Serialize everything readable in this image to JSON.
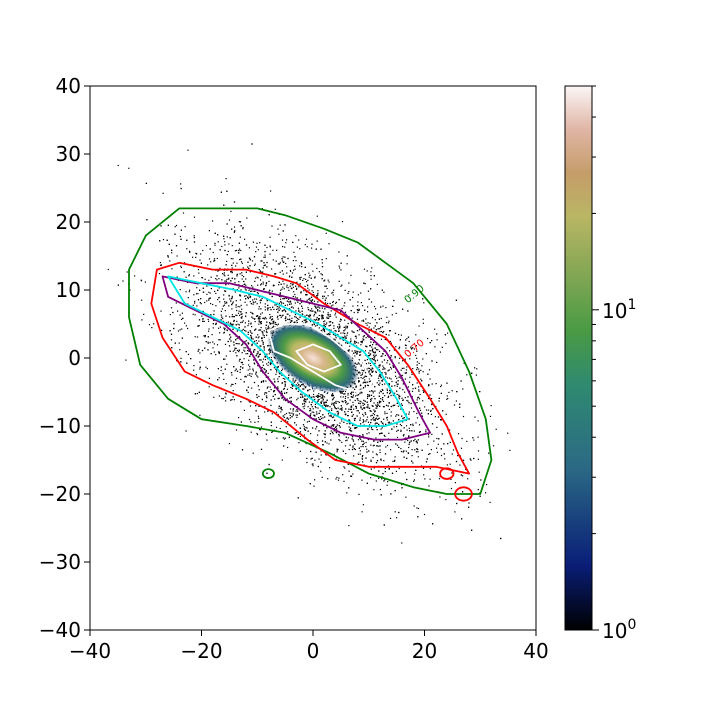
{
  "chart_data": {
    "type": "heatmap",
    "subtype": "2D histogram with density contours",
    "title": "",
    "xlabel": "",
    "ylabel": "",
    "xlim": [
      -40,
      40
    ],
    "ylim": [
      -40,
      40
    ],
    "x_ticks": [
      -40,
      -20,
      0,
      20,
      40
    ],
    "x_tick_labels": [
      "−40",
      "−20",
      "0",
      "20",
      "40"
    ],
    "y_ticks": [
      40,
      30,
      20,
      10,
      0,
      -10,
      -20,
      -30,
      -40
    ],
    "y_tick_labels": [
      "40",
      "30",
      "20",
      "10",
      "0",
      "−10",
      "−20",
      "−30",
      "−40"
    ],
    "grid": false,
    "colormap": "gist_earth",
    "colorbar": {
      "scale": "log",
      "range": [
        1,
        50
      ],
      "tick_labels": [
        "10^0",
        "10^1"
      ],
      "tick_values": [
        1,
        10
      ]
    },
    "distribution": {
      "center": [
        0,
        0
      ],
      "position_angle_deg": -30,
      "extent_semi_major": 40,
      "extent_semi_minor": 17
    },
    "contours": [
      {
        "color": "#008000",
        "label": "0.90",
        "label_at": [
          17,
          8
        ],
        "polygon": [
          [
            -33,
            13
          ],
          [
            -30,
            18
          ],
          [
            -24,
            22
          ],
          [
            -18,
            22
          ],
          [
            -10,
            22
          ],
          [
            -5,
            21
          ],
          [
            2,
            19
          ],
          [
            8,
            17
          ],
          [
            13,
            14
          ],
          [
            18,
            11
          ],
          [
            24,
            5
          ],
          [
            28,
            -2
          ],
          [
            31,
            -9
          ],
          [
            32,
            -15
          ],
          [
            30,
            -20
          ],
          [
            24,
            -20
          ],
          [
            18,
            -19
          ],
          [
            10,
            -17
          ],
          [
            3,
            -14
          ],
          [
            -5,
            -11
          ],
          [
            -12,
            -10
          ],
          [
            -20,
            -9
          ],
          [
            -26,
            -6
          ],
          [
            -31,
            -1
          ],
          [
            -33,
            6
          ]
        ]
      },
      {
        "color": "#ff0000",
        "label": "0.70",
        "label_at": [
          17,
          0
        ],
        "polygon": [
          [
            -28,
            13
          ],
          [
            -24,
            14
          ],
          [
            -18,
            13
          ],
          [
            -12,
            13
          ],
          [
            -7,
            12
          ],
          [
            -3,
            11
          ],
          [
            2,
            8
          ],
          [
            8,
            5
          ],
          [
            13,
            3
          ],
          [
            17,
            -1
          ],
          [
            21,
            -6
          ],
          [
            24,
            -10
          ],
          [
            26,
            -14
          ],
          [
            28,
            -17
          ],
          [
            22,
            -16
          ],
          [
            16,
            -16
          ],
          [
            10,
            -16
          ],
          [
            4,
            -15
          ],
          [
            -1,
            -12
          ],
          [
            -7,
            -8
          ],
          [
            -12,
            -6
          ],
          [
            -18,
            -4
          ],
          [
            -23,
            -2
          ],
          [
            -27,
            3
          ],
          [
            -29,
            8
          ]
        ]
      },
      {
        "color": "#800080",
        "label": "",
        "polygon": [
          [
            -27,
            12
          ],
          [
            -21,
            11
          ],
          [
            -15,
            11
          ],
          [
            -10,
            10
          ],
          [
            -5,
            9
          ],
          [
            0,
            8
          ],
          [
            5,
            7
          ],
          [
            9,
            4
          ],
          [
            13,
            1
          ],
          [
            16,
            -3
          ],
          [
            19,
            -8
          ],
          [
            21,
            -11
          ],
          [
            16,
            -12
          ],
          [
            11,
            -12
          ],
          [
            5,
            -11
          ],
          [
            0,
            -9
          ],
          [
            -5,
            -6
          ],
          [
            -9,
            -2
          ],
          [
            -12,
            2
          ],
          [
            -16,
            5
          ],
          [
            -21,
            7
          ],
          [
            -26,
            9
          ]
        ]
      },
      {
        "color": "#00e5e5",
        "label": "",
        "polygon": [
          [
            -26,
            12
          ],
          [
            -20,
            11
          ],
          [
            -14,
            10
          ],
          [
            -9,
            9
          ],
          [
            -4,
            7
          ],
          [
            1,
            5
          ],
          [
            5,
            3
          ],
          [
            9,
            1
          ],
          [
            12,
            -2
          ],
          [
            15,
            -6
          ],
          [
            17,
            -9
          ],
          [
            13,
            -10
          ],
          [
            8,
            -10
          ],
          [
            3,
            -8
          ],
          [
            -2,
            -5
          ],
          [
            -6,
            -2
          ],
          [
            -9,
            1
          ],
          [
            -13,
            4
          ],
          [
            -18,
            6
          ],
          [
            -23,
            8
          ]
        ]
      },
      {
        "color": "#ffffff",
        "label": "",
        "polygon": [
          [
            -8,
            4
          ],
          [
            -5,
            5
          ],
          [
            -1,
            5
          ],
          [
            3,
            3
          ],
          [
            6,
            1
          ],
          [
            9,
            -1
          ],
          [
            11,
            -4
          ],
          [
            8,
            -5
          ],
          [
            4,
            -4
          ],
          [
            0,
            -2
          ],
          [
            -4,
            0
          ],
          [
            -7,
            1
          ]
        ]
      },
      {
        "color": "#ffffff",
        "label": "",
        "polygon": [
          [
            -3,
            1
          ],
          [
            0,
            2
          ],
          [
            3,
            1
          ],
          [
            5,
            -1
          ],
          [
            2,
            -2
          ],
          [
            -1,
            -1
          ]
        ]
      }
    ],
    "islands": [
      {
        "color": "#ff0000",
        "center": [
          27,
          -20
        ],
        "radius": 1.5
      },
      {
        "color": "#ff0000",
        "center": [
          24,
          -17
        ],
        "radius": 1.2
      },
      {
        "color": "#008000",
        "center": [
          -8,
          -17
        ],
        "radius": 1.0
      }
    ]
  }
}
